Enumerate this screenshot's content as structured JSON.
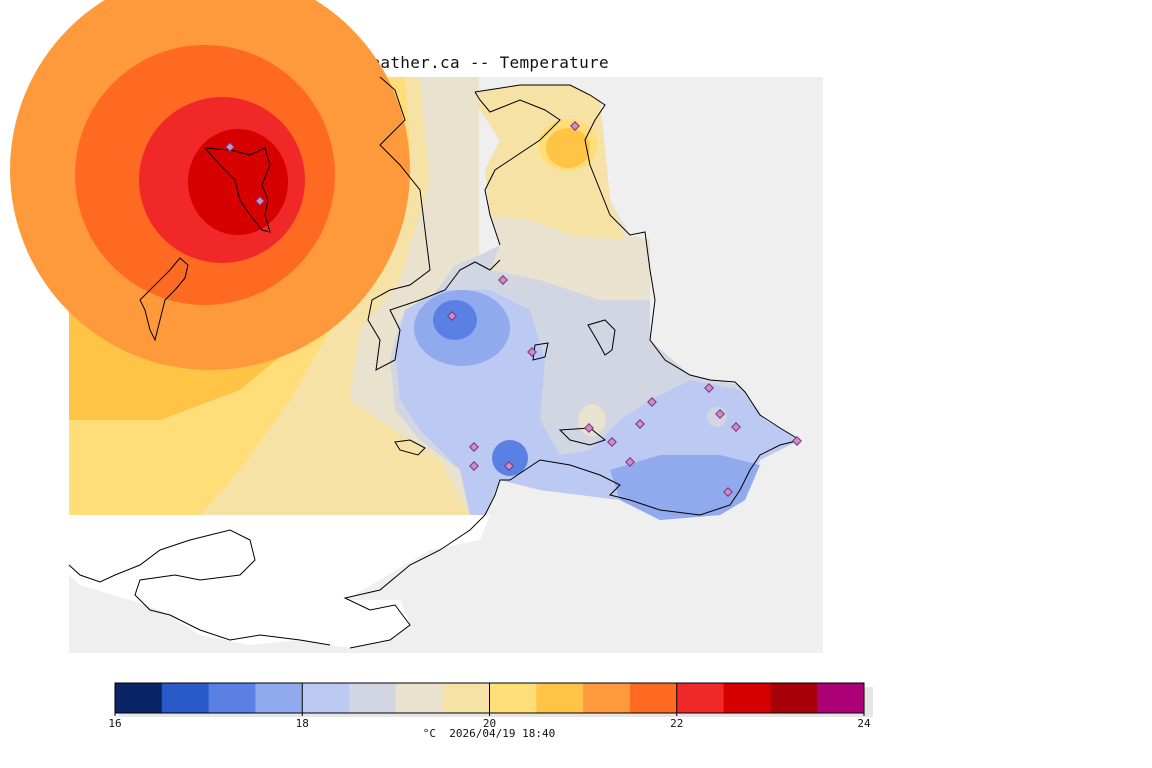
{
  "map": {
    "title": "VictoriaWeather.ca -- Temperature",
    "caption": "°C  2026/04/19 18:40",
    "colors": {
      "background": "#efefef",
      "coastline": "#000000",
      "marker_outline": "#6a3a8a",
      "marker_fill": "#d98ab8"
    }
  },
  "legend": {
    "unit": "°C",
    "range": [
      16,
      24
    ],
    "tick_labels": [
      "16",
      "18",
      "20",
      "22",
      "24"
    ],
    "bins": [
      {
        "from": 16.0,
        "to": 16.5,
        "color": "#0b2466"
      },
      {
        "from": 16.5,
        "to": 17.0,
        "color": "#2a5ac9"
      },
      {
        "from": 17.0,
        "to": 17.5,
        "color": "#5a80e4"
      },
      {
        "from": 17.5,
        "to": 18.0,
        "color": "#91aaee"
      },
      {
        "from": 18.0,
        "to": 18.5,
        "color": "#bcc9f2"
      },
      {
        "from": 18.5,
        "to": 19.0,
        "color": "#d2d6e2"
      },
      {
        "from": 19.0,
        "to": 19.5,
        "color": "#e8e2cf"
      },
      {
        "from": 19.5,
        "to": 20.0,
        "color": "#f6e2a4"
      },
      {
        "from": 20.0,
        "to": 20.5,
        "color": "#ffdd78"
      },
      {
        "from": 20.5,
        "to": 21.0,
        "color": "#ffc445"
      },
      {
        "from": 21.0,
        "to": 21.5,
        "color": "#ff9a3c"
      },
      {
        "from": 21.5,
        "to": 22.0,
        "color": "#ff6a22"
      },
      {
        "from": 22.0,
        "to": 22.5,
        "color": "#f02828"
      },
      {
        "from": 22.5,
        "to": 23.0,
        "color": "#d70000"
      },
      {
        "from": 23.0,
        "to": 23.5,
        "color": "#a80008"
      },
      {
        "from": 23.5,
        "to": 24.0,
        "color": "#ad0077"
      }
    ]
  }
}
